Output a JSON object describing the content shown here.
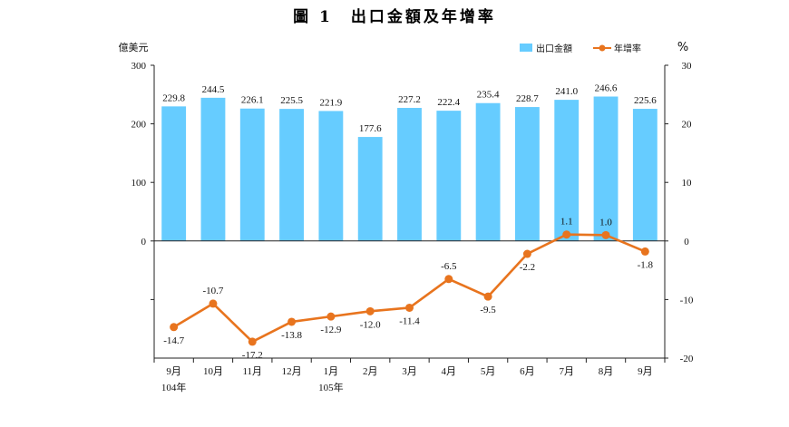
{
  "chart_data": {
    "type": "bar+line",
    "title": "圖 1　出口金額及年增率",
    "categories": [
      "9月",
      "10月",
      "11月",
      "12月",
      "1月",
      "2月",
      "3月",
      "4月",
      "5月",
      "6月",
      "7月",
      "8月",
      "9月"
    ],
    "year_labels": [
      {
        "index": 0,
        "label": "104年"
      },
      {
        "index": 4,
        "label": "105年"
      }
    ],
    "series": [
      {
        "name": "出口金額",
        "type": "bar",
        "axis": "left",
        "color": "#66ccff",
        "values": [
          229.8,
          244.5,
          226.1,
          225.5,
          221.9,
          177.6,
          227.2,
          222.4,
          235.4,
          228.7,
          241.0,
          246.6,
          225.6
        ],
        "labels": [
          "229.8",
          "244.5",
          "226.1",
          "225.5",
          "221.9",
          "177.6",
          "227.2",
          "222.4",
          "235.4",
          "228.7",
          "241.0",
          "246.6",
          "225.6"
        ]
      },
      {
        "name": "年增率",
        "type": "line",
        "axis": "right",
        "color": "#e8741e",
        "values": [
          -14.7,
          -10.7,
          -17.2,
          -13.8,
          -12.9,
          -12.0,
          -11.4,
          -6.5,
          -9.5,
          -2.2,
          1.1,
          1.0,
          -1.8
        ],
        "labels": [
          "-14.7",
          "-10.7",
          "-17.2",
          "-13.8",
          "-12.9",
          "-12.0",
          "-11.4",
          "-6.5",
          "-9.5",
          "-2.2",
          "1.1",
          "1.0",
          "-1.8"
        ]
      }
    ],
    "left_axis": {
      "unit": "億美元",
      "range": [
        -200,
        300
      ],
      "ticks": [
        0,
        100,
        200,
        300
      ],
      "tick_labels": [
        "0",
        "100",
        "200",
        "300"
      ]
    },
    "right_axis": {
      "unit": "%",
      "range": [
        -20,
        30
      ],
      "ticks": [
        -20,
        -10,
        0,
        10,
        20,
        30
      ],
      "tick_labels": [
        "-20",
        "-10",
        "0",
        "10",
        "20",
        "30"
      ]
    },
    "legend": {
      "position": "top-right",
      "items": [
        "出口金額",
        "年增率"
      ]
    }
  }
}
